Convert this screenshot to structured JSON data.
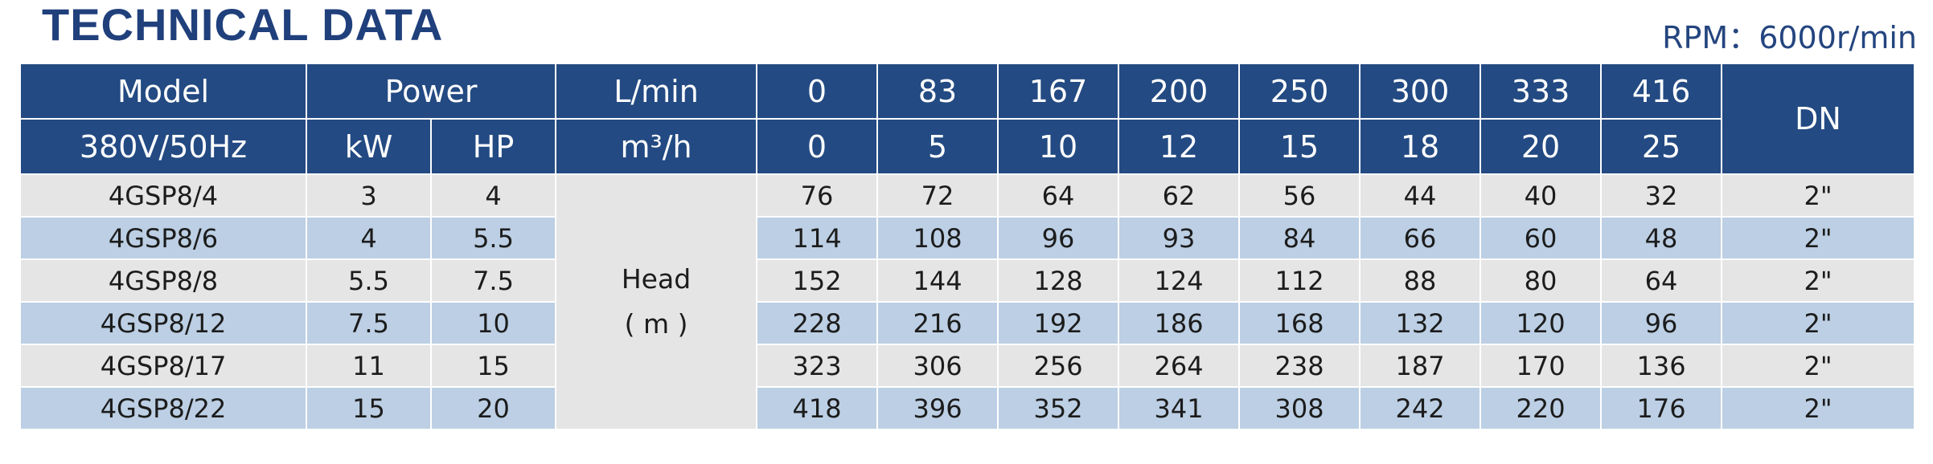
{
  "title": "TECHNICAL DATA",
  "rpm": "RPM：6000r/min",
  "header": {
    "model_label": "Model",
    "voltage_label": "380V/50Hz",
    "power_label": "Power",
    "kw_label": "kW",
    "hp_label": "HP",
    "flow_lmin_label": "L/min",
    "flow_m3h_label": "m³/h",
    "dn_label": "DN",
    "flow_lmin": [
      "0",
      "83",
      "167",
      "200",
      "250",
      "300",
      "333",
      "416"
    ],
    "flow_m3h": [
      "0",
      "5",
      "10",
      "12",
      "15",
      "18",
      "20",
      "25"
    ]
  },
  "head_label": "Head",
  "head_unit": "( m )",
  "rows": [
    {
      "model": "4GSP8/4",
      "kw": "3",
      "hp": "4",
      "heads": [
        "76",
        "72",
        "64",
        "62",
        "56",
        "44",
        "40",
        "32"
      ],
      "dn": "2\""
    },
    {
      "model": "4GSP8/6",
      "kw": "4",
      "hp": "5.5",
      "heads": [
        "114",
        "108",
        "96",
        "93",
        "84",
        "66",
        "60",
        "48"
      ],
      "dn": "2\""
    },
    {
      "model": "4GSP8/8",
      "kw": "5.5",
      "hp": "7.5",
      "heads": [
        "152",
        "144",
        "128",
        "124",
        "112",
        "88",
        "80",
        "64"
      ],
      "dn": "2\""
    },
    {
      "model": "4GSP8/12",
      "kw": "7.5",
      "hp": "10",
      "heads": [
        "228",
        "216",
        "192",
        "186",
        "168",
        "132",
        "120",
        "96"
      ],
      "dn": "2\""
    },
    {
      "model": "4GSP8/17",
      "kw": "11",
      "hp": "15",
      "heads": [
        "323",
        "306",
        "256",
        "264",
        "238",
        "187",
        "170",
        "136"
      ],
      "dn": "2\""
    },
    {
      "model": "4GSP8/22",
      "kw": "15",
      "hp": "20",
      "heads": [
        "418",
        "396",
        "352",
        "341",
        "308",
        "242",
        "220",
        "176"
      ],
      "dn": "2\""
    }
  ]
}
